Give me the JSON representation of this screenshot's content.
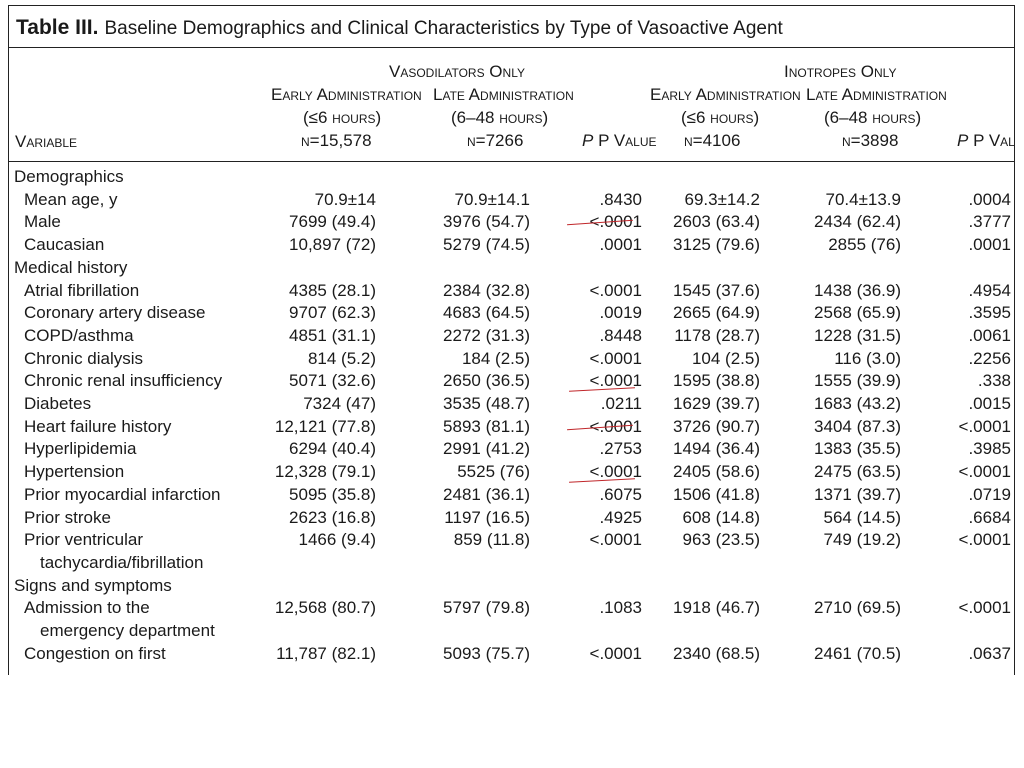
{
  "title": {
    "label": "Table III.",
    "text": "Baseline Demographics and Clinical Characteristics by Type of Vasoactive Agent"
  },
  "header": {
    "variable": "Variable",
    "vasodilators": "Vasodilators Only",
    "inotropes": "Inotropes Only",
    "early": "Early Administration",
    "late": "Late Administration",
    "early_range": "(≤6 hours)",
    "late_range": "(6–48 hours)",
    "n_vd_early": "n=15,578",
    "n_vd_late": "n=7266",
    "n_in_early": "n=4106",
    "n_in_late": "n=3898",
    "pvalue": "P Value"
  },
  "rows": [
    {
      "type": "group",
      "label": "Demographics"
    },
    {
      "type": "row",
      "label": "Mean age, y",
      "c1": "70.9±14",
      "c2": "70.9±14.1",
      "p1": ".8430",
      "c3": "69.3±14.2",
      "c4": "70.4±13.9",
      "p2": ".0004"
    },
    {
      "type": "row",
      "label": "Male",
      "c1": "7699 (49.4)",
      "c2": "3976 (54.7)",
      "p1": "<.0001",
      "c3": "2603 (63.4)",
      "c4": "2434 (62.4)",
      "p2": ".3777",
      "mark": "strike"
    },
    {
      "type": "row",
      "label": "Caucasian",
      "c1": "10,897 (72)",
      "c2": "5279 (74.5)",
      "p1": ".0001",
      "c3": "3125 (79.6)",
      "c4": "2855 (76)",
      "p2": ".0001"
    },
    {
      "type": "group",
      "label": "Medical history"
    },
    {
      "type": "row",
      "label": "Atrial fibrillation",
      "c1": "4385 (28.1)",
      "c2": "2384 (32.8)",
      "p1": "<.0001",
      "c3": "1545 (37.6)",
      "c4": "1438 (36.9)",
      "p2": ".4954"
    },
    {
      "type": "row",
      "label": "Coronary artery disease",
      "c1": "9707 (62.3)",
      "c2": "4683 (64.5)",
      "p1": ".0019",
      "c3": "2665 (64.9)",
      "c4": "2568 (65.9)",
      "p2": ".3595"
    },
    {
      "type": "row",
      "label": "COPD/asthma",
      "c1": "4851 (31.1)",
      "c2": "2272 (31.3)",
      "p1": ".8448",
      "c3": "1178 (28.7)",
      "c4": "1228 (31.5)",
      "p2": ".0061"
    },
    {
      "type": "row",
      "label": "Chronic dialysis",
      "c1": "814 (5.2)",
      "c2": "184 (2.5)",
      "p1": "<.0001",
      "c3": "104 (2.5)",
      "c4": "116 (3.0)",
      "p2": ".2256"
    },
    {
      "type": "row",
      "label": "Chronic renal insufficiency",
      "c1": "5071 (32.6)",
      "c2": "2650 (36.5)",
      "p1": "<.0001",
      "c3": "1595 (38.8)",
      "c4": "1555 (39.9)",
      "p2": ".338",
      "mark": "underline"
    },
    {
      "type": "row",
      "label": "Diabetes",
      "c1": "7324 (47)",
      "c2": "3535 (48.7)",
      "p1": ".0211",
      "c3": "1629 (39.7)",
      "c4": "1683 (43.2)",
      "p2": ".0015"
    },
    {
      "type": "row",
      "label": "Heart failure history",
      "c1": "12,121 (77.8)",
      "c2": "5893 (81.1)",
      "p1": "<.0001",
      "c3": "3726 (90.7)",
      "c4": "3404 (87.3)",
      "p2": "<.0001",
      "mark": "strike"
    },
    {
      "type": "row",
      "label": "Hyperlipidemia",
      "c1": "6294 (40.4)",
      "c2": "2991 (41.2)",
      "p1": ".2753",
      "c3": "1494 (36.4)",
      "c4": "1383 (35.5)",
      "p2": ".3985"
    },
    {
      "type": "row",
      "label": "Hypertension",
      "c1": "12,328 (79.1)",
      "c2": "5525 (76)",
      "p1": "<.0001",
      "c3": "2405 (58.6)",
      "c4": "2475 (63.5)",
      "p2": "<.0001",
      "mark": "underline"
    },
    {
      "type": "row",
      "label": "Prior myocardial infarction",
      "c1": "5095 (35.8)",
      "c2": "2481 (36.1)",
      "p1": ".6075",
      "c3": "1506 (41.8)",
      "c4": "1371 (39.7)",
      "p2": ".0719"
    },
    {
      "type": "row",
      "label": "Prior stroke",
      "c1": "2623 (16.8)",
      "c2": "1197 (16.5)",
      "p1": ".4925",
      "c3": "608 (14.8)",
      "c4": "564 (14.5)",
      "p2": ".6684"
    },
    {
      "type": "row",
      "label": "Prior ventricular",
      "label2": "tachycardia/fibrillation",
      "c1": "1466 (9.4)",
      "c2": "859 (11.8)",
      "p1": "<.0001",
      "c3": "963 (23.5)",
      "c4": "749 (19.2)",
      "p2": "<.0001"
    },
    {
      "type": "group",
      "label": "Signs and symptoms"
    },
    {
      "type": "row",
      "label": "Admission to the",
      "label2": "emergency department",
      "c1": "12,568 (80.7)",
      "c2": "5797 (79.8)",
      "p1": ".1083",
      "c3": "1918 (46.7)",
      "c4": "2710 (69.5)",
      "p2": "<.0001"
    },
    {
      "type": "row",
      "label": "Congestion on first",
      "c1": "11,787 (82.1)",
      "c2": "5093 (75.7)",
      "p1": "<.0001",
      "c3": "2340 (68.5)",
      "c4": "2461 (70.5)",
      "p2": ".0637"
    }
  ]
}
